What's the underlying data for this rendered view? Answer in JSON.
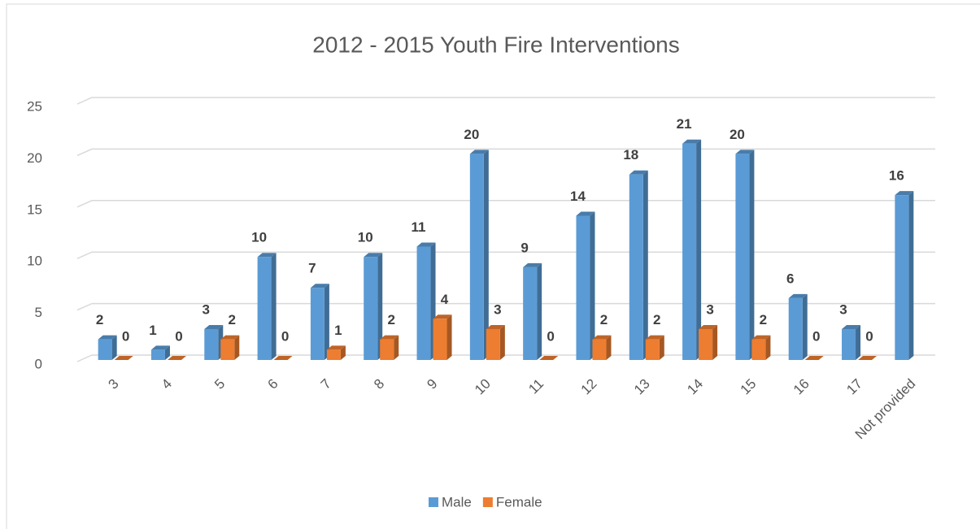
{
  "chart_data": {
    "type": "bar3d",
    "title": "2012 - 2015 Youth Fire Interventions",
    "categories": [
      "3",
      "4",
      "5",
      "6",
      "7",
      "8",
      "9",
      "10",
      "11",
      "12",
      "13",
      "14",
      "15",
      "16",
      "17",
      "Not provided"
    ],
    "series": [
      {
        "name": "Male",
        "color": "#5b9bd5",
        "values": [
          2,
          1,
          3,
          10,
          7,
          10,
          11,
          20,
          9,
          14,
          18,
          21,
          20,
          6,
          3,
          16
        ]
      },
      {
        "name": "Female",
        "color": "#ed7d31",
        "values": [
          0,
          0,
          2,
          0,
          1,
          2,
          4,
          3,
          0,
          2,
          2,
          3,
          2,
          0,
          0,
          null
        ]
      }
    ],
    "ylim": [
      0,
      25
    ],
    "yticks": [
      0,
      5,
      10,
      15,
      20,
      25
    ],
    "grid": true,
    "legend": "bottom"
  }
}
